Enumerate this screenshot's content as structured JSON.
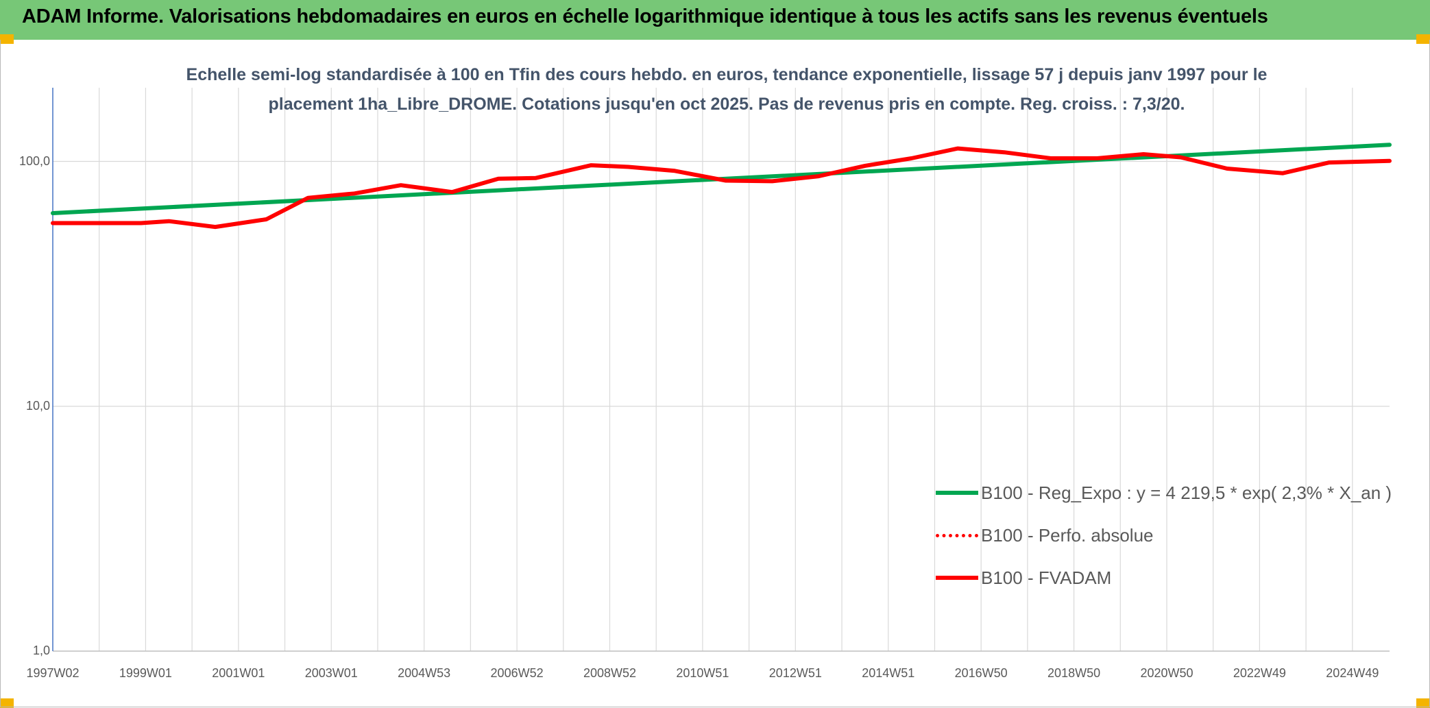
{
  "banner": {
    "title": "ADAM Informe. Valorisations hebdomadaires en euros en échelle logarithmique identique à tous les actifs sans les revenus éventuels",
    "background": "#77c777",
    "corner_color": "#f4b400"
  },
  "chart_data": {
    "type": "line",
    "title": "Echelle semi-log standardisée à 100 en Tfin des cours hebdo. en euros, tendance exponentielle, lissage 57 j depuis janv 1997 pour le placement 1ha_Libre_DROME. Cotations jusqu'en oct 2025. Pas de revenus pris en compte. Reg. croiss. : 7,3/20.",
    "title_color": "#44546a",
    "xlabel": "",
    "ylabel": "",
    "y_scale": "log",
    "ylim": [
      1,
      200
    ],
    "y_ticks": [
      {
        "value": 100,
        "label": "100,0"
      },
      {
        "value": 10,
        "label": "10,0"
      },
      {
        "value": 1,
        "label": "1,0"
      }
    ],
    "xlim": [
      1997.0,
      2025.8
    ],
    "x_ticks": [
      {
        "t": 1997.0,
        "label": "1997W02"
      },
      {
        "t": 1999.0,
        "label": "1999W01"
      },
      {
        "t": 2001.0,
        "label": "2001W01"
      },
      {
        "t": 2003.0,
        "label": "2003W01"
      },
      {
        "t": 2005.0,
        "label": "2004W53"
      },
      {
        "t": 2007.0,
        "label": "2006W52"
      },
      {
        "t": 2009.0,
        "label": "2008W52"
      },
      {
        "t": 2011.0,
        "label": "2010W51"
      },
      {
        "t": 2013.0,
        "label": "2012W51"
      },
      {
        "t": 2015.0,
        "label": "2014W51"
      },
      {
        "t": 2017.0,
        "label": "2016W50"
      },
      {
        "t": 2019.0,
        "label": "2018W50"
      },
      {
        "t": 2021.0,
        "label": "2020W50"
      },
      {
        "t": 2023.0,
        "label": "2022W49"
      },
      {
        "t": 2025.0,
        "label": "2024W49"
      }
    ],
    "grid": true,
    "legend_position": "bottom-right",
    "series": [
      {
        "name": "B100 - Reg_Expo : y = 4 219,5 * exp( 2,3% *  X_an )",
        "color": "#00a651",
        "style": "solid",
        "x": [
          1997.0,
          2025.8
        ],
        "values": [
          61.5,
          117.0
        ]
      },
      {
        "name": "B100 - Perfo. absolue",
        "color": "#ff0000",
        "style": "dotted",
        "x": [],
        "values": []
      },
      {
        "name": "B100 - FVADAM",
        "color": "#ff0000",
        "style": "solid",
        "x": [
          1997.0,
          1998.9,
          1999.5,
          2000.5,
          2001.6,
          2002.5,
          2003.5,
          2004.5,
          2005.6,
          2006.6,
          2007.4,
          2008.6,
          2009.4,
          2010.4,
          2011.5,
          2012.5,
          2013.5,
          2014.5,
          2015.5,
          2016.5,
          2017.5,
          2018.5,
          2019.5,
          2020.5,
          2021.3,
          2022.3,
          2023.5,
          2024.5,
          2025.8
        ],
        "values": [
          56.0,
          56.0,
          57.0,
          54.0,
          58.0,
          71.0,
          74.0,
          80.0,
          75.0,
          85.0,
          85.5,
          96.5,
          95.0,
          91.5,
          83.5,
          83.0,
          87.0,
          96.0,
          103.0,
          113.0,
          109.0,
          103.0,
          103.0,
          107.0,
          104.0,
          93.5,
          89.5,
          99.0,
          100.5
        ]
      }
    ]
  }
}
